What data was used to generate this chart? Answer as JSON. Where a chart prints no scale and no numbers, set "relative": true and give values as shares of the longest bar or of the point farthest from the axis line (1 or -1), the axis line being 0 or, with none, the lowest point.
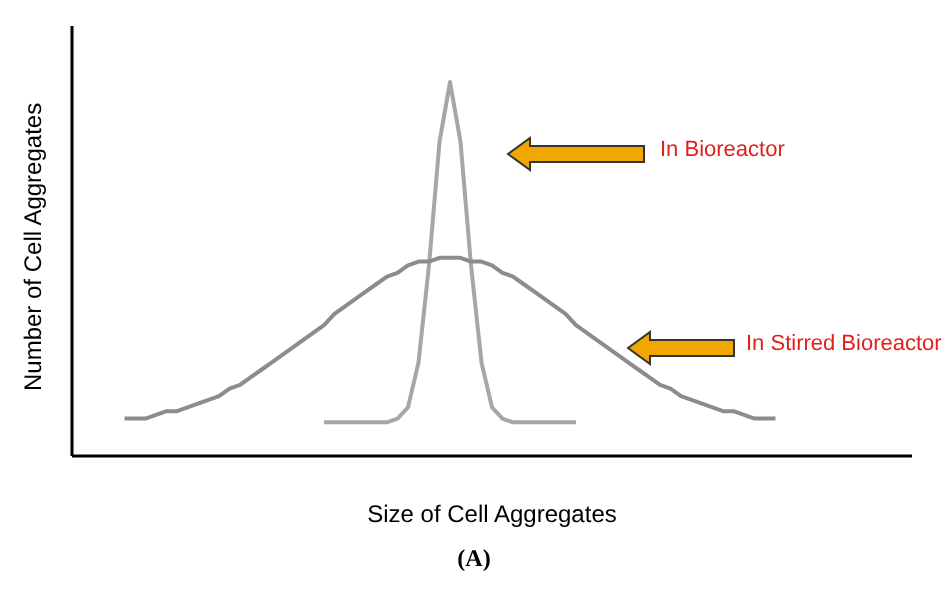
{
  "chart_data": {
    "type": "line",
    "relative": true,
    "xlabel": "Size of Cell Aggregates",
    "ylabel": "Number of Cell Aggregates",
    "categories": [
      null,
      null,
      null,
      null,
      null,
      null,
      null,
      null,
      null,
      null,
      null,
      null,
      null,
      null,
      null,
      null,
      null,
      null,
      null,
      null,
      null,
      null,
      null,
      null,
      null,
      null,
      null,
      null,
      null,
      null,
      null,
      null,
      null,
      null,
      null,
      null,
      null,
      null,
      null,
      null,
      null,
      null,
      null,
      null,
      null,
      null,
      null,
      null,
      null,
      null,
      null,
      null,
      null,
      null,
      null,
      null,
      null,
      null,
      null,
      null,
      null,
      null,
      null,
      null,
      null,
      null,
      null,
      null,
      null,
      null,
      null,
      null,
      null,
      null,
      null,
      null,
      null,
      null,
      null,
      null,
      null
    ],
    "series": [
      {
        "color": "#a6a6a6",
        "values": [
          null,
          null,
          null,
          null,
          null,
          null,
          null,
          null,
          null,
          null,
          null,
          null,
          null,
          null,
          null,
          null,
          null,
          null,
          null,
          null,
          null,
          null,
          null,
          null,
          0.09,
          0.09,
          0.09,
          0.09,
          0.09,
          0.09,
          0.09,
          0.1,
          0.13,
          0.25,
          0.51,
          0.84,
          1,
          0.84,
          0.51,
          0.25,
          0.13,
          0.1,
          0.09,
          0.09,
          0.09,
          0.09,
          0.09,
          0.09,
          0.09,
          null,
          null,
          null,
          null,
          null,
          null,
          null,
          null,
          null,
          null,
          null,
          null,
          null,
          null,
          null,
          null,
          null,
          null,
          null,
          null,
          null,
          null,
          null,
          null,
          null,
          null,
          null,
          null,
          null,
          null,
          null,
          null
        ]
      },
      {
        "color": "#8c8c8c",
        "values": [
          null,
          null,
          null,
          null,
          null,
          0.1,
          0.1,
          0.1,
          0.11,
          0.12,
          0.12,
          0.13,
          0.14,
          0.15,
          0.16,
          0.18,
          0.19,
          0.21,
          0.23,
          0.25,
          0.27,
          0.29,
          0.31,
          0.33,
          0.35,
          0.38,
          0.4,
          0.42,
          0.44,
          0.46,
          0.48,
          0.49,
          0.51,
          0.52,
          0.52,
          0.53,
          0.53,
          0.53,
          0.52,
          0.52,
          0.51,
          0.49,
          0.48,
          0.46,
          0.44,
          0.42,
          0.4,
          0.38,
          0.35,
          0.33,
          0.31,
          0.29,
          0.27,
          0.25,
          0.23,
          0.21,
          0.19,
          0.18,
          0.16,
          0.15,
          0.14,
          0.13,
          0.12,
          0.12,
          0.11,
          0.1,
          0.1,
          0.1,
          null,
          null,
          null,
          null,
          null,
          null,
          null,
          null,
          null,
          null,
          null,
          null,
          null
        ]
      }
    ],
    "annotations": [
      "In Bioreactor",
      "In Stirred Bioreactor",
      "(A)"
    ]
  }
}
